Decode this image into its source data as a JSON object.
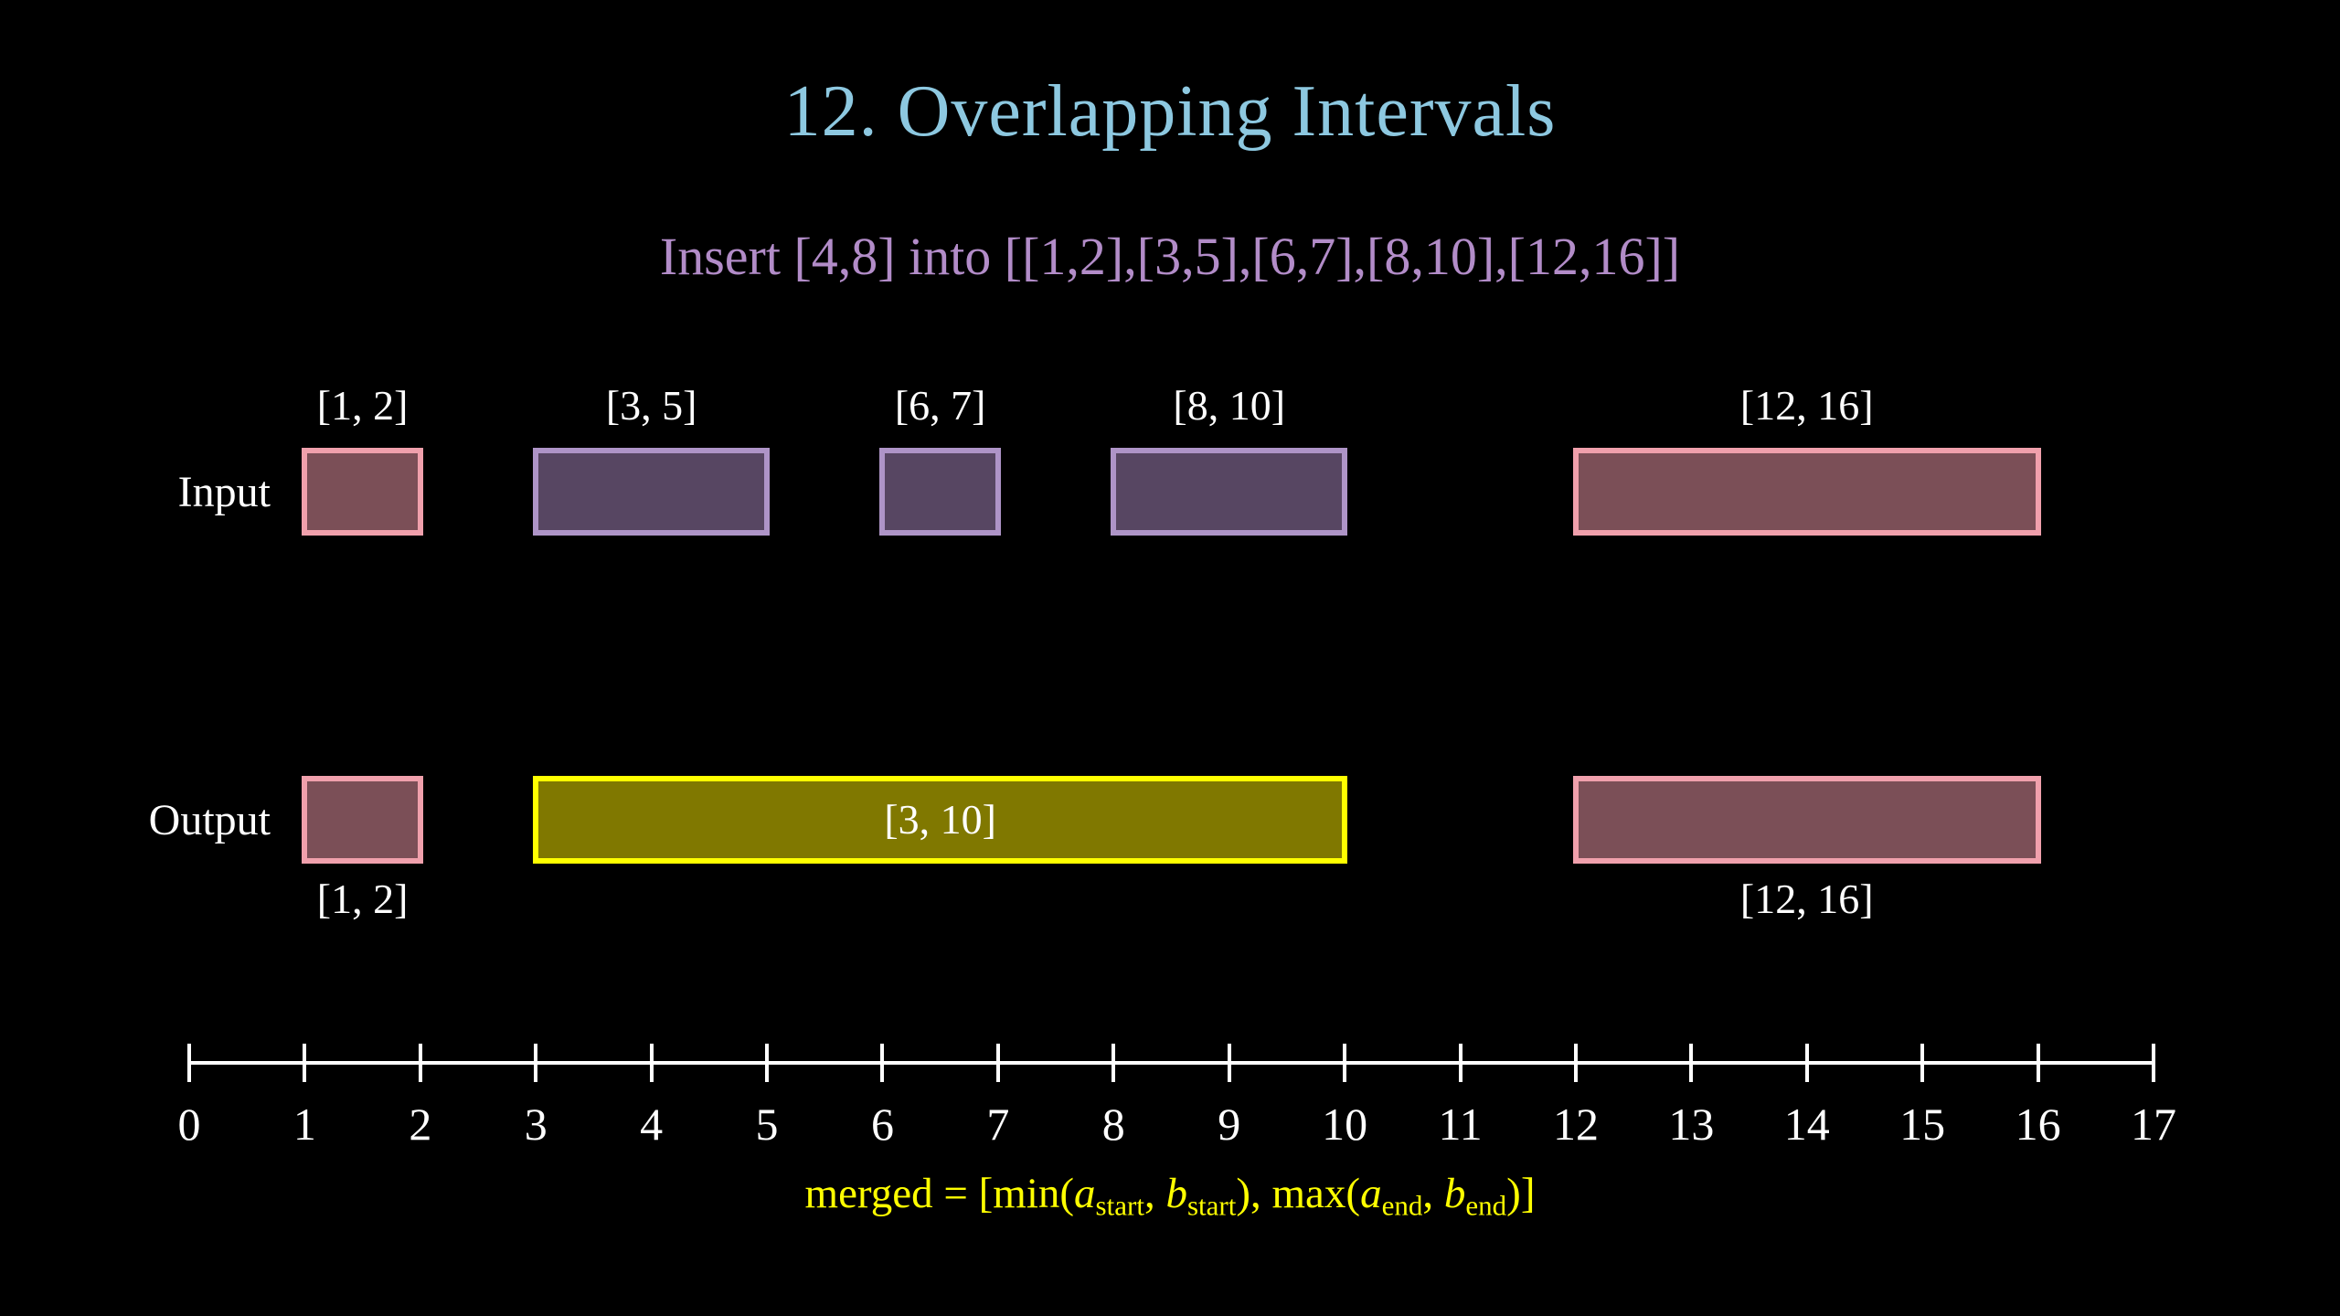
{
  "title": {
    "text": "12. Overlapping Intervals",
    "color": "#8DC8E0"
  },
  "subtitle": {
    "text": "Insert [4,8] into [[1,2],[3,5],[6,7],[8,10],[12,16]]",
    "color": "#B28CC8"
  },
  "rows": {
    "input_label": "Input",
    "output_label": "Output",
    "label_color": "#FFFFFF"
  },
  "axis": {
    "min": 0,
    "max": 17,
    "tick_labels": [
      "0",
      "1",
      "2",
      "3",
      "4",
      "5",
      "6",
      "7",
      "8",
      "9",
      "10",
      "11",
      "12",
      "13",
      "14",
      "15",
      "16",
      "17"
    ],
    "color": "#FFFFFF"
  },
  "palette": {
    "pink": {
      "stroke": "#F0A0AC",
      "fill": "#7B4F57"
    },
    "purple": {
      "stroke": "#AE94C7",
      "fill": "#574662"
    },
    "yellow": {
      "stroke": "#FFFF00",
      "fill": "#807800"
    }
  },
  "diagram": {
    "input_row": [
      {
        "label": "[1, 2]",
        "start": 1,
        "end": 2,
        "color": "pink",
        "label_pos": "above"
      },
      {
        "label": "[3, 5]",
        "start": 3,
        "end": 5,
        "color": "purple",
        "label_pos": "above"
      },
      {
        "label": "[6, 7]",
        "start": 6,
        "end": 7,
        "color": "purple",
        "label_pos": "above"
      },
      {
        "label": "[8, 10]",
        "start": 8,
        "end": 10,
        "color": "purple",
        "label_pos": "above"
      },
      {
        "label": "[12, 16]",
        "start": 12,
        "end": 16,
        "color": "pink",
        "label_pos": "above"
      }
    ],
    "output_row": [
      {
        "label": "[1, 2]",
        "start": 1,
        "end": 2,
        "color": "pink",
        "label_pos": "below"
      },
      {
        "label": "[3, 10]",
        "start": 3,
        "end": 10,
        "color": "yellow",
        "label_pos": "inside"
      },
      {
        "label": "[12, 16]",
        "start": 12,
        "end": 16,
        "color": "pink",
        "label_pos": "below"
      }
    ]
  },
  "formula": {
    "color": "#FFFF00",
    "segments": [
      {
        "t": "merged = [min(",
        "s": "n"
      },
      {
        "t": "a",
        "s": "v"
      },
      {
        "t": "start",
        "s": "sub"
      },
      {
        "t": ", ",
        "s": "n"
      },
      {
        "t": "b",
        "s": "v"
      },
      {
        "t": "start",
        "s": "sub"
      },
      {
        "t": "), max(",
        "s": "n"
      },
      {
        "t": "a",
        "s": "v"
      },
      {
        "t": "end",
        "s": "sub"
      },
      {
        "t": ", ",
        "s": "n"
      },
      {
        "t": "b",
        "s": "v"
      },
      {
        "t": "end",
        "s": "sub"
      },
      {
        "t": ")]",
        "s": "n"
      }
    ]
  },
  "chart_data": {
    "type": "interval-diagram",
    "insert_interval": [
      4,
      8
    ],
    "input_intervals": [
      [
        1,
        2
      ],
      [
        3,
        5
      ],
      [
        6,
        7
      ],
      [
        8,
        10
      ],
      [
        12,
        16
      ]
    ],
    "output_intervals": [
      [
        1,
        2
      ],
      [
        3,
        10
      ],
      [
        12,
        16
      ]
    ],
    "axis_range": [
      0,
      17
    ]
  }
}
